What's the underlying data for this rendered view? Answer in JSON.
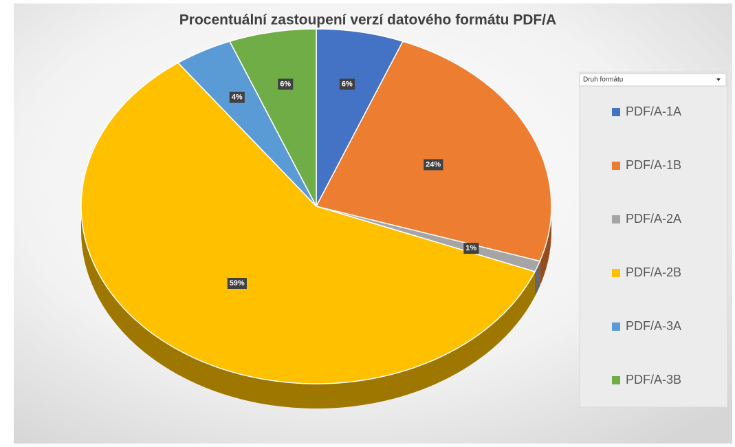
{
  "chart_data": {
    "type": "pie",
    "title": "Procentuální zastoupení verzí datového formátu PDF/A",
    "legend_title": "Druh formátu",
    "categories": [
      "PDF/A-1A",
      "PDF/A-1B",
      "PDF/A-2A",
      "PDF/A-2B",
      "PDF/A-3A",
      "PDF/A-3B"
    ],
    "values": [
      6,
      24,
      1,
      59,
      4,
      6
    ],
    "value_labels": [
      "6%",
      "24%",
      "1%",
      "59%",
      "4%",
      "6%"
    ],
    "colors": [
      "#4472c4",
      "#ed7d31",
      "#a5a5a5",
      "#ffc000",
      "#5b9bd5",
      "#70ad47"
    ],
    "legend": "right"
  }
}
